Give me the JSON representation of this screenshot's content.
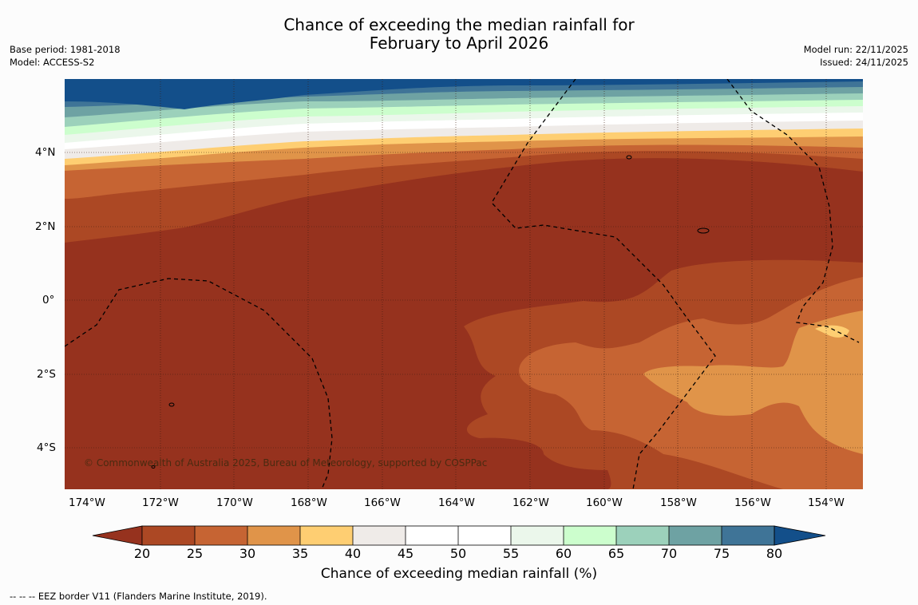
{
  "title": {
    "line1": "Chance of exceeding the median rainfall for",
    "line2": "February to April 2026"
  },
  "meta_left": {
    "base_period": "Base period: 1981-2018",
    "model": "Model: ACCESS-S2"
  },
  "meta_right": {
    "model_run": "Model run: 22/11/2025",
    "issued": "Issued: 24/11/2025"
  },
  "map": {
    "lat_labels": [
      "4°N",
      "2°N",
      "0°",
      "2°S",
      "4°S"
    ],
    "lon_labels": [
      "174°W",
      "172°W",
      "170°W",
      "168°W",
      "166°W",
      "164°W",
      "162°W",
      "160°W",
      "158°W",
      "156°W",
      "154°W"
    ],
    "copyright": "© Commonwealth of Australia 2025, Bureau of Meteorology, supported by COSPPac",
    "colors": {
      "lt20": "#96321e",
      "c20_25": "#ac4824",
      "c25_30": "#c66433",
      "c30_35": "#e09449",
      "c35_40": "#fece72",
      "c40_45": "#efebe8",
      "c45_55": "#ffffff",
      "c55_60": "#ebf7eb",
      "c60_65": "#ccfecd",
      "c65_70": "#9cd1bb",
      "c70_75": "#6ea2a3",
      "c75_80": "#3f7497",
      "gt80": "#134f8a"
    }
  },
  "colorbar": {
    "labels": [
      "20",
      "25",
      "30",
      "35",
      "40",
      "45",
      "50",
      "55",
      "60",
      "65",
      "70",
      "75",
      "80"
    ],
    "colors": [
      "#96321e",
      "#ac4824",
      "#c66433",
      "#e09449",
      "#fece72",
      "#efebe8",
      "#ffffff",
      "#ffffff",
      "#ebf7eb",
      "#ccfecd",
      "#9cd1bb",
      "#6ea2a3",
      "#3f7497",
      "#134f8a"
    ],
    "title": "Chance of exceeding median rainfall (%)"
  },
  "eez_note": "--  --  -- EEZ border V11 (Flanders Marine Institute, 2019)."
}
